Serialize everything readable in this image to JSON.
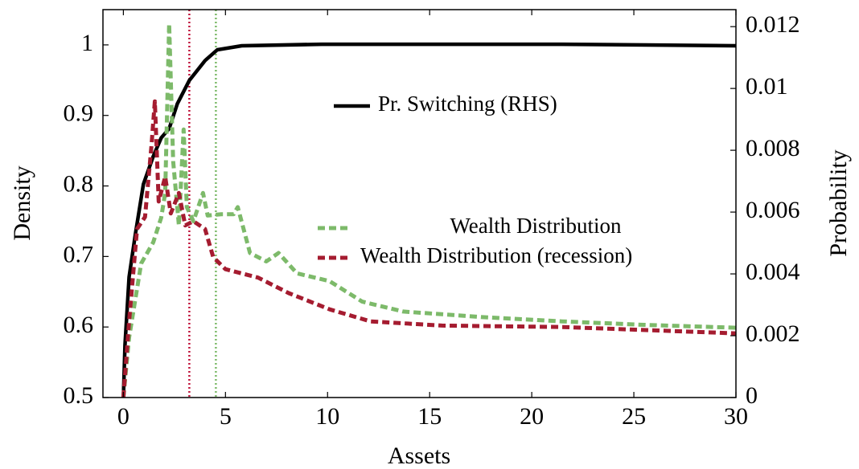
{
  "chart_data": {
    "type": "line",
    "xlabel": "Assets",
    "ylabel": "Density",
    "y2label": "Probability",
    "xlim": [
      -1,
      30
    ],
    "xticks": [
      0,
      5,
      10,
      15,
      20,
      25,
      30
    ],
    "ylim": [
      0.5,
      1.05
    ],
    "yticks": [
      0.5,
      0.6,
      0.7,
      0.8,
      0.9,
      1
    ],
    "y2lim": [
      0,
      0.01255
    ],
    "y2ticks": [
      0,
      0.002,
      0.004,
      0.006,
      0.008,
      0.01,
      0.012
    ],
    "series": [
      {
        "name": "Pr. Switching  (RHS)",
        "color": "#000000",
        "axis": "y2",
        "dashed": false,
        "x": [
          0,
          0.08,
          0.28,
          0.59,
          0.98,
          1.46,
          1.85,
          2.24,
          2.64,
          3.23,
          4.0,
          4.6,
          5.8,
          9.7,
          21.5,
          30
        ],
        "values": [
          0,
          0.0017,
          0.0039,
          0.0053,
          0.0069,
          0.0078,
          0.0084,
          0.0087,
          0.0095,
          0.01026,
          0.0109,
          0.01125,
          0.01138,
          0.01143,
          0.01143,
          0.01138
        ]
      },
      {
        "name": "Wealth Distribution",
        "color": "#7dba6a",
        "axis": "y",
        "dashed": true,
        "x": [
          0,
          0.28,
          0.87,
          1.46,
          1.85,
          2.05,
          2.24,
          2.44,
          2.72,
          2.95,
          3.11,
          3.43,
          3.9,
          4.13,
          4.8,
          5.4,
          5.6,
          6.2,
          7.0,
          7.6,
          8.5,
          10.1,
          11.7,
          13.7,
          17.6,
          21.5,
          25.5,
          30
        ],
        "values": [
          0.5,
          0.585,
          0.69,
          0.72,
          0.755,
          0.79,
          1.03,
          0.835,
          0.744,
          0.88,
          0.77,
          0.75,
          0.79,
          0.758,
          0.76,
          0.76,
          0.77,
          0.705,
          0.693,
          0.705,
          0.676,
          0.665,
          0.636,
          0.622,
          0.614,
          0.608,
          0.603,
          0.599
        ]
      },
      {
        "name": "Wealth Distribution (recession)",
        "color": "#a51c30",
        "axis": "y",
        "dashed": true,
        "x": [
          0,
          0.28,
          0.67,
          1.06,
          1.38,
          1.54,
          1.73,
          2.05,
          2.32,
          2.72,
          3.03,
          3.43,
          4.0,
          4.4,
          5.0,
          6.6,
          8.1,
          10.1,
          12.1,
          15.6,
          21.5,
          30
        ],
        "values": [
          0.5,
          0.608,
          0.739,
          0.756,
          0.858,
          0.92,
          0.778,
          0.813,
          0.761,
          0.79,
          0.744,
          0.75,
          0.739,
          0.699,
          0.682,
          0.67,
          0.648,
          0.625,
          0.608,
          0.602,
          0.6,
          0.591
        ]
      }
    ],
    "vlines": [
      {
        "x": 3.23,
        "color": "#c0143c"
      },
      {
        "x": 4.53,
        "color": "#7dba6a"
      }
    ]
  }
}
